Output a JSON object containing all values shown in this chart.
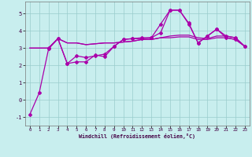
{
  "xlabel": "Windchill (Refroidissement éolien,°C)",
  "xlim": [
    -0.5,
    23.5
  ],
  "ylim": [
    -1.5,
    5.7
  ],
  "yticks": [
    -1,
    0,
    1,
    2,
    3,
    4,
    5
  ],
  "xticks": [
    0,
    1,
    2,
    3,
    4,
    5,
    6,
    7,
    8,
    9,
    10,
    11,
    12,
    13,
    14,
    15,
    16,
    17,
    18,
    19,
    20,
    21,
    22,
    23
  ],
  "bg_color": "#c8eeee",
  "grid_color": "#99cccc",
  "line_color": "#aa00aa",
  "line1": {
    "x": [
      0,
      1,
      2,
      3,
      4,
      5,
      6,
      7,
      8,
      9,
      10,
      11,
      12,
      13,
      14,
      15,
      16,
      17,
      18,
      19,
      20,
      21,
      22,
      23
    ],
    "y": [
      -0.85,
      0.4,
      2.95,
      3.55,
      2.1,
      2.2,
      2.2,
      2.6,
      2.5,
      3.1,
      3.5,
      3.55,
      3.55,
      3.6,
      4.4,
      5.2,
      5.2,
      4.4,
      3.3,
      3.7,
      4.1,
      3.6,
      3.5,
      3.1
    ]
  },
  "line2": {
    "x": [
      2,
      3,
      4,
      5,
      6,
      7,
      8,
      9,
      10,
      11,
      12,
      13,
      14,
      15,
      16,
      17,
      18,
      19,
      20,
      21,
      22,
      23
    ],
    "y": [
      3.0,
      3.55,
      2.1,
      2.55,
      2.45,
      2.55,
      2.65,
      3.1,
      3.5,
      3.55,
      3.6,
      3.6,
      3.9,
      5.2,
      5.2,
      4.45,
      3.3,
      3.7,
      4.1,
      3.7,
      3.6,
      3.1
    ]
  },
  "line3": {
    "x": [
      0,
      1,
      2,
      3,
      4,
      5,
      6,
      7,
      8,
      9,
      10,
      11,
      12,
      13,
      14,
      15,
      16,
      17,
      18,
      19,
      20,
      21,
      22,
      23
    ],
    "y": [
      3.0,
      3.0,
      3.0,
      3.55,
      3.3,
      3.3,
      3.2,
      3.25,
      3.3,
      3.3,
      3.35,
      3.4,
      3.5,
      3.5,
      3.6,
      3.6,
      3.65,
      3.65,
      3.5,
      3.5,
      3.6,
      3.6,
      3.5,
      3.1
    ]
  },
  "line4": {
    "x": [
      0,
      1,
      2,
      3,
      4,
      5,
      6,
      7,
      8,
      9,
      10,
      11,
      12,
      13,
      14,
      15,
      16,
      17,
      18,
      19,
      20,
      21,
      22,
      23
    ],
    "y": [
      3.0,
      3.0,
      3.0,
      3.55,
      3.3,
      3.3,
      3.2,
      3.25,
      3.3,
      3.3,
      3.35,
      3.4,
      3.5,
      3.5,
      3.6,
      3.7,
      3.75,
      3.75,
      3.6,
      3.55,
      3.7,
      3.7,
      3.6,
      3.1
    ]
  }
}
